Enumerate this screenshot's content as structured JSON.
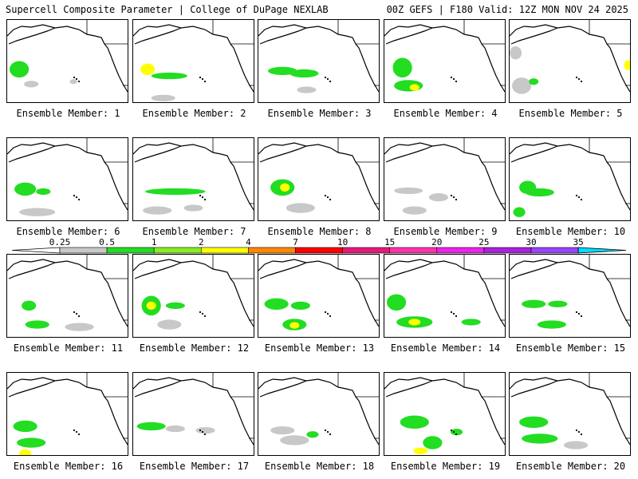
{
  "header": {
    "title_left": "Supercell Composite Parameter | College of DuPage NEXLAB",
    "title_right": "00Z GEFS | F180 Valid: 12Z MON NOV 24 2025"
  },
  "label_prefix": "Ensemble Member: ",
  "members": [
    {
      "id": 1,
      "blobs": [
        [
          0.1,
          0.6,
          0.08,
          0.1,
          "g"
        ],
        [
          0.2,
          0.78,
          0.06,
          0.04,
          "c"
        ],
        [
          0.55,
          0.75,
          0.03,
          0.03,
          "c"
        ]
      ]
    },
    {
      "id": 2,
      "blobs": [
        [
          0.3,
          0.68,
          0.15,
          0.04,
          "g"
        ],
        [
          0.12,
          0.6,
          0.06,
          0.07,
          "y"
        ],
        [
          0.25,
          0.95,
          0.1,
          0.04,
          "c"
        ]
      ]
    },
    {
      "id": 3,
      "blobs": [
        [
          0.2,
          0.62,
          0.12,
          0.05,
          "g"
        ],
        [
          0.38,
          0.65,
          0.12,
          0.05,
          "g"
        ],
        [
          0.4,
          0.85,
          0.08,
          0.04,
          "c"
        ]
      ]
    },
    {
      "id": 4,
      "blobs": [
        [
          0.15,
          0.58,
          0.08,
          0.12,
          "g"
        ],
        [
          0.2,
          0.8,
          0.12,
          0.07,
          "g"
        ],
        [
          0.25,
          0.82,
          0.04,
          0.04,
          "y"
        ]
      ]
    },
    {
      "id": 5,
      "blobs": [
        [
          0.1,
          0.8,
          0.08,
          0.1,
          "c"
        ],
        [
          0.05,
          0.4,
          0.05,
          0.08,
          "c"
        ],
        [
          0.2,
          0.75,
          0.04,
          0.04,
          "g"
        ],
        [
          0.98,
          0.55,
          0.03,
          0.06,
          "y"
        ]
      ]
    },
    {
      "id": 6,
      "blobs": [
        [
          0.15,
          0.62,
          0.09,
          0.08,
          "g"
        ],
        [
          0.3,
          0.65,
          0.06,
          0.04,
          "g"
        ],
        [
          0.25,
          0.9,
          0.15,
          0.05,
          "c"
        ]
      ]
    },
    {
      "id": 7,
      "blobs": [
        [
          0.35,
          0.65,
          0.25,
          0.04,
          "g"
        ],
        [
          0.2,
          0.88,
          0.12,
          0.05,
          "c"
        ],
        [
          0.5,
          0.85,
          0.08,
          0.04,
          "c"
        ]
      ]
    },
    {
      "id": 8,
      "blobs": [
        [
          0.2,
          0.6,
          0.1,
          0.1,
          "g"
        ],
        [
          0.22,
          0.6,
          0.04,
          0.05,
          "y"
        ],
        [
          0.35,
          0.85,
          0.12,
          0.06,
          "c"
        ]
      ]
    },
    {
      "id": 9,
      "blobs": [
        [
          0.2,
          0.64,
          0.12,
          0.04,
          "c"
        ],
        [
          0.45,
          0.72,
          0.08,
          0.05,
          "c"
        ],
        [
          0.25,
          0.88,
          0.1,
          0.05,
          "c"
        ]
      ]
    },
    {
      "id": 10,
      "blobs": [
        [
          0.15,
          0.6,
          0.07,
          0.08,
          "g"
        ],
        [
          0.25,
          0.66,
          0.12,
          0.05,
          "g"
        ],
        [
          0.08,
          0.9,
          0.05,
          0.06,
          "g"
        ]
      ]
    },
    {
      "id": 11,
      "blobs": [
        [
          0.18,
          0.62,
          0.06,
          0.06,
          "g"
        ],
        [
          0.25,
          0.85,
          0.1,
          0.05,
          "g"
        ],
        [
          0.6,
          0.88,
          0.12,
          0.05,
          "c"
        ]
      ]
    },
    {
      "id": 12,
      "blobs": [
        [
          0.15,
          0.62,
          0.08,
          0.12,
          "g"
        ],
        [
          0.15,
          0.62,
          0.04,
          0.05,
          "y"
        ],
        [
          0.35,
          0.62,
          0.08,
          0.04,
          "g"
        ],
        [
          0.3,
          0.85,
          0.1,
          0.06,
          "c"
        ]
      ]
    },
    {
      "id": 13,
      "blobs": [
        [
          0.15,
          0.6,
          0.1,
          0.07,
          "g"
        ],
        [
          0.35,
          0.62,
          0.08,
          0.05,
          "g"
        ],
        [
          0.3,
          0.85,
          0.1,
          0.07,
          "g"
        ],
        [
          0.3,
          0.86,
          0.04,
          0.04,
          "y"
        ]
      ]
    },
    {
      "id": 14,
      "blobs": [
        [
          0.1,
          0.58,
          0.08,
          0.1,
          "g"
        ],
        [
          0.25,
          0.82,
          0.15,
          0.07,
          "g"
        ],
        [
          0.25,
          0.82,
          0.05,
          0.04,
          "y"
        ],
        [
          0.72,
          0.82,
          0.08,
          0.04,
          "g"
        ]
      ]
    },
    {
      "id": 15,
      "blobs": [
        [
          0.2,
          0.6,
          0.1,
          0.05,
          "g"
        ],
        [
          0.4,
          0.6,
          0.08,
          0.04,
          "g"
        ],
        [
          0.35,
          0.85,
          0.12,
          0.05,
          "g"
        ]
      ]
    },
    {
      "id": 16,
      "blobs": [
        [
          0.15,
          0.65,
          0.1,
          0.07,
          "g"
        ],
        [
          0.2,
          0.85,
          0.12,
          0.06,
          "g"
        ],
        [
          0.15,
          0.98,
          0.05,
          0.05,
          "y"
        ]
      ]
    },
    {
      "id": 17,
      "blobs": [
        [
          0.15,
          0.65,
          0.12,
          0.05,
          "g"
        ],
        [
          0.35,
          0.68,
          0.08,
          0.04,
          "c"
        ],
        [
          0.6,
          0.7,
          0.08,
          0.04,
          "c"
        ]
      ]
    },
    {
      "id": 18,
      "blobs": [
        [
          0.2,
          0.7,
          0.1,
          0.05,
          "c"
        ],
        [
          0.3,
          0.82,
          0.12,
          0.06,
          "c"
        ],
        [
          0.45,
          0.75,
          0.05,
          0.04,
          "g"
        ]
      ]
    },
    {
      "id": 19,
      "blobs": [
        [
          0.25,
          0.6,
          0.12,
          0.08,
          "g"
        ],
        [
          0.4,
          0.85,
          0.08,
          0.08,
          "g"
        ],
        [
          0.3,
          0.95,
          0.06,
          0.04,
          "y"
        ],
        [
          0.6,
          0.72,
          0.05,
          0.04,
          "g"
        ]
      ]
    },
    {
      "id": 20,
      "blobs": [
        [
          0.2,
          0.6,
          0.12,
          0.07,
          "g"
        ],
        [
          0.25,
          0.8,
          0.15,
          0.06,
          "g"
        ],
        [
          0.55,
          0.88,
          0.1,
          0.05,
          "c"
        ]
      ]
    }
  ],
  "legend": {
    "ticks": [
      "0.25",
      "0.5",
      "1",
      "2",
      "4",
      "7",
      "10",
      "15",
      "20",
      "25",
      "30",
      "35"
    ],
    "colors": [
      "#c8c8c8",
      "#22dd22",
      "#88ee22",
      "#ffff00",
      "#ff8800",
      "#ff0000",
      "#e8187a",
      "#ff33aa",
      "#ee22ee",
      "#aa22dd",
      "#9944ff",
      "#bb66dd",
      "#00ddff"
    ]
  }
}
